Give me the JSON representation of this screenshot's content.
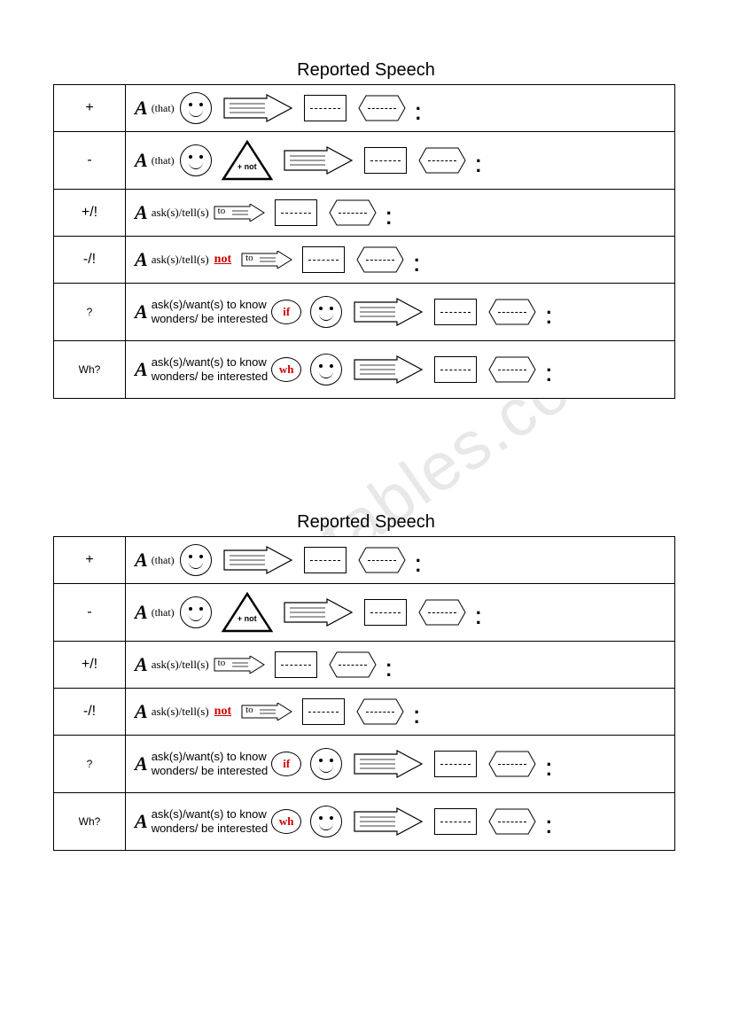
{
  "title": "Reported Speech",
  "watermark": "ESLprintables.com",
  "rows": [
    {
      "symbol": "+",
      "that": "(that)",
      "verbs": "",
      "not": false,
      "preword": "",
      "smiley": true,
      "triangle": false,
      "arrowLabel": "",
      "bigArrow": true,
      "rectDashed": true,
      "hexDashed": true,
      "twoLine": false
    },
    {
      "symbol": "-",
      "that": "(that)",
      "verbs": "",
      "not": false,
      "preword": "",
      "smiley": true,
      "triangle": true,
      "triangleLabel": "+ not",
      "arrowLabel": "",
      "bigArrow": true,
      "rectDashed": true,
      "hexDashed": true,
      "twoLine": false
    },
    {
      "symbol": "+/!",
      "that": "",
      "verbs": "ask(s)/tell(s)",
      "not": false,
      "preword": "",
      "smiley": false,
      "triangle": false,
      "arrowLabel": "to",
      "bigArrow": false,
      "rectDashed": true,
      "hexDashed": true,
      "twoLine": false
    },
    {
      "symbol": "-/!",
      "that": "",
      "verbs": "ask(s)/tell(s)",
      "not": true,
      "preword": "",
      "smiley": false,
      "triangle": false,
      "arrowLabel": "to",
      "bigArrow": false,
      "rectDashed": true,
      "hexDashed": true,
      "twoLine": false
    },
    {
      "symbol": "?",
      "that": "",
      "verbs": "ask(s)/want(s) to know",
      "verbs2": "wonders/ be interested",
      "not": false,
      "preword": "if",
      "smiley": true,
      "triangle": false,
      "arrowLabel": "",
      "bigArrow": true,
      "rectDashed": true,
      "hexDashed": true,
      "twoLine": true
    },
    {
      "symbol": "Wh?",
      "that": "",
      "verbs": "ask(s)/want(s) to know",
      "verbs2": "wonders/ be interested",
      "not": false,
      "preword": "wh",
      "smiley": true,
      "triangle": false,
      "arrowLabel": "",
      "bigArrow": true,
      "rectDashed": true,
      "hexDashed": true,
      "twoLine": true
    }
  ],
  "colors": {
    "red": "#cc0000",
    "black": "#000000",
    "white": "#ffffff",
    "watermark": "#e8e8e8"
  }
}
